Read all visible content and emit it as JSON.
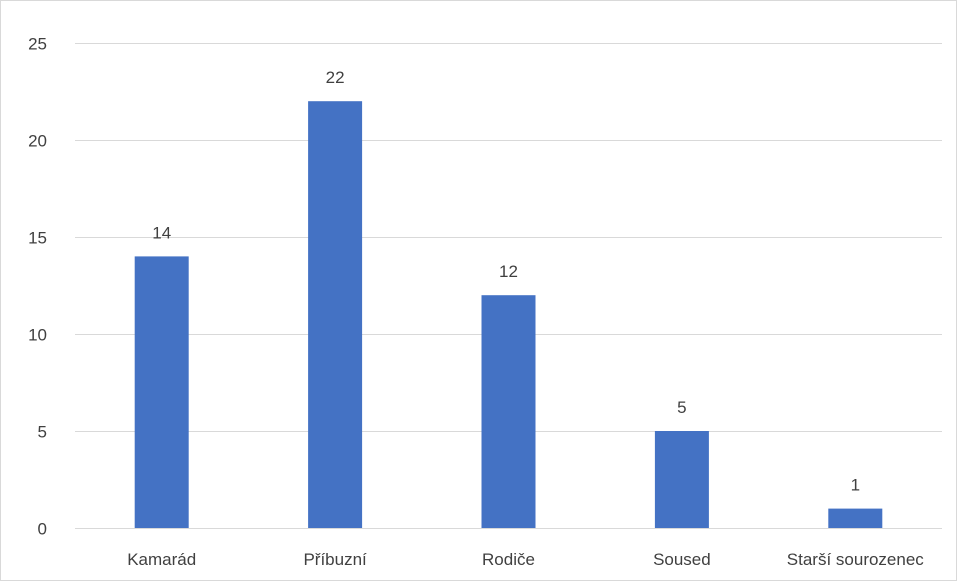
{
  "chart_data": {
    "type": "bar",
    "categories": [
      "Kamarád",
      "Příbuzní",
      "Rodiče",
      "Soused",
      "Starší sourozenec"
    ],
    "values": [
      14,
      22,
      12,
      5,
      1
    ],
    "data_labels": [
      "14",
      "22",
      "12",
      "5",
      "1"
    ],
    "title": "",
    "xlabel": "",
    "ylabel": "",
    "ylim": [
      0,
      25
    ],
    "yticks": [
      0,
      5,
      10,
      15,
      20,
      25
    ],
    "ytick_labels": [
      "0",
      "5",
      "10",
      "15",
      "20",
      "25"
    ],
    "grid": true,
    "legend": "none",
    "colors": {
      "bar": "#4472C4",
      "grid": "#d9d9d9",
      "text": "#404040",
      "border": "#d9d9d9"
    }
  }
}
